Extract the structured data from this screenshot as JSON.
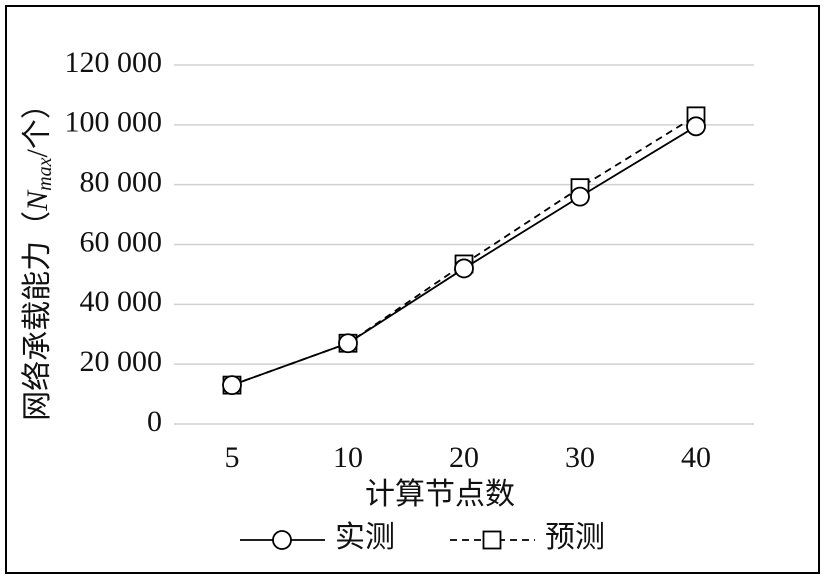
{
  "chart_data": {
    "type": "line",
    "ylabel": {
      "prefix": "网络承载能力（",
      "var": "N",
      "sub": "max",
      "suffix": "/个）"
    },
    "xlabel": "计算节点数",
    "categories": [
      "5",
      "10",
      "20",
      "30",
      "40"
    ],
    "series": [
      {
        "name": "实测",
        "color": "#000000",
        "marker": "circle",
        "dashed": false,
        "values": [
          13000,
          27000,
          52000,
          76000,
          99500
        ]
      },
      {
        "name": "预测",
        "color": "#000000",
        "marker": "square",
        "dashed": true,
        "values": [
          13000,
          27000,
          53500,
          79000,
          103000
        ]
      }
    ],
    "ylim": [
      0,
      120000
    ],
    "yticks": [
      0,
      {
        "value": 20000,
        "label": "20 000"
      },
      {
        "value": 40000,
        "label": "40 000"
      },
      {
        "value": 60000,
        "label": "60 000"
      },
      {
        "value": 80000,
        "label": "80 000"
      },
      {
        "value": 100000,
        "label": "100 000"
      },
      {
        "value": 120000,
        "label": "120 000"
      }
    ],
    "grid": true
  }
}
